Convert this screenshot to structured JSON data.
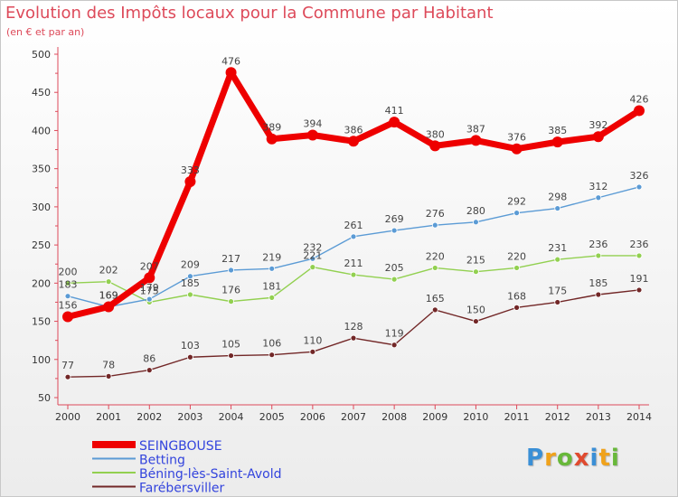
{
  "title": "Evolution des Impôts locaux pour la Commune par Habitant",
  "subtitle": "(en € et par an)",
  "logo": {
    "text": "Proxiti"
  },
  "chart_data": {
    "type": "line",
    "x": [
      "2000",
      "2001",
      "2002",
      "2003",
      "2004",
      "2005",
      "2006",
      "2007",
      "2008",
      "2009",
      "2010",
      "2011",
      "2012",
      "2013",
      "2014"
    ],
    "ylim": [
      50,
      500
    ],
    "yticks": [
      50,
      100,
      150,
      200,
      250,
      300,
      350,
      400,
      450,
      500
    ],
    "legend_position": "bottom-left",
    "grid": false,
    "series": [
      {
        "name": "SEINGBOUSE",
        "color": "#ee0000",
        "values": [
          156,
          169,
          207,
          333,
          476,
          389,
          394,
          386,
          411,
          380,
          387,
          376,
          385,
          392,
          426
        ]
      },
      {
        "name": "Betting",
        "color": "#5b9bd5",
        "values": [
          183,
          169,
          179,
          209,
          217,
          219,
          232,
          261,
          269,
          276,
          280,
          292,
          298,
          312,
          326
        ]
      },
      {
        "name": "Béning-lès-Saint-Avold",
        "color": "#92d050",
        "values": [
          200,
          202,
          175,
          185,
          176,
          181,
          221,
          211,
          205,
          220,
          215,
          220,
          231,
          236,
          236
        ]
      },
      {
        "name": "Farébersviller",
        "color": "#722727",
        "values": [
          77,
          78,
          86,
          103,
          105,
          106,
          110,
          128,
          119,
          165,
          150,
          168,
          175,
          185,
          191
        ]
      }
    ]
  }
}
